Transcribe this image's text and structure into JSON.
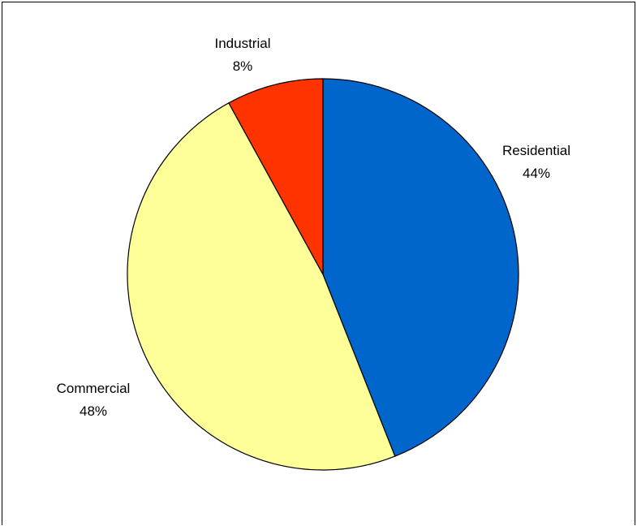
{
  "chart_data": {
    "type": "pie",
    "title": "",
    "slices": [
      {
        "label": "Residential",
        "percent_label": "44%",
        "value": 44,
        "color": "#0066CC"
      },
      {
        "label": "Commercial",
        "percent_label": "48%",
        "value": 48,
        "color": "#FFFF99"
      },
      {
        "label": "Industrial",
        "percent_label": "8%",
        "value": 8,
        "color": "#FF3300"
      }
    ],
    "start_angle_deg": 0,
    "direction": "clockwise",
    "legend": "none",
    "data_labels": "category name and percentage, outside slices"
  }
}
